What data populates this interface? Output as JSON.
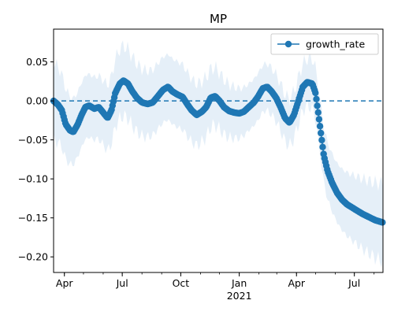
{
  "chart_data": {
    "type": "line",
    "title": "MP",
    "xlabel": "",
    "ylabel": "",
    "x_start": "2020-03-15",
    "x_end": "2021-08-15",
    "ylim": [
      -0.22,
      0.092
    ],
    "yticks": [
      0.05,
      0.0,
      -0.05,
      -0.1,
      -0.15,
      -0.2
    ],
    "ytick_labels": [
      "0.05",
      "0.00",
      "−0.05",
      "−0.10",
      "−0.15",
      "−0.20"
    ],
    "xticks": [
      {
        "date": "2020-04-01",
        "label": "Apr"
      },
      {
        "date": "2020-07-01",
        "label": "Jul"
      },
      {
        "date": "2020-10-01",
        "label": "Oct"
      },
      {
        "date": "2021-01-01",
        "label": "Jan"
      },
      {
        "date": "2021-04-01",
        "label": "Apr"
      },
      {
        "date": "2021-07-01",
        "label": "Jul"
      }
    ],
    "year_label": "2021",
    "reference_line": 0.0,
    "legend": {
      "placement": "top-right"
    },
    "colors": {
      "series": "#1f77b4",
      "band": "#dce9f5"
    },
    "series": [
      {
        "name": "growth_rate",
        "points": [
          [
            "2020-03-15",
            0.0
          ],
          [
            "2020-03-22",
            -0.005
          ],
          [
            "2020-03-28",
            -0.012
          ],
          [
            "2020-04-03",
            -0.03
          ],
          [
            "2020-04-10",
            -0.038
          ],
          [
            "2020-04-15",
            -0.04
          ],
          [
            "2020-04-22",
            -0.03
          ],
          [
            "2020-04-28",
            -0.018
          ],
          [
            "2020-05-04",
            -0.008
          ],
          [
            "2020-05-10",
            -0.006
          ],
          [
            "2020-05-18",
            -0.01
          ],
          [
            "2020-05-25",
            -0.008
          ],
          [
            "2020-06-01",
            -0.015
          ],
          [
            "2020-06-08",
            -0.022
          ],
          [
            "2020-06-14",
            -0.012
          ],
          [
            "2020-06-20",
            0.01
          ],
          [
            "2020-06-27",
            0.022
          ],
          [
            "2020-07-03",
            0.026
          ],
          [
            "2020-07-10",
            0.022
          ],
          [
            "2020-07-17",
            0.012
          ],
          [
            "2020-07-24",
            0.004
          ],
          [
            "2020-08-01",
            -0.002
          ],
          [
            "2020-08-10",
            -0.004
          ],
          [
            "2020-08-18",
            -0.002
          ],
          [
            "2020-08-26",
            0.006
          ],
          [
            "2020-09-03",
            0.014
          ],
          [
            "2020-09-11",
            0.018
          ],
          [
            "2020-09-18",
            0.012
          ],
          [
            "2020-09-26",
            0.008
          ],
          [
            "2020-10-04",
            0.005
          ],
          [
            "2020-10-11",
            -0.004
          ],
          [
            "2020-10-18",
            -0.012
          ],
          [
            "2020-10-26",
            -0.018
          ],
          [
            "2020-11-03",
            -0.014
          ],
          [
            "2020-11-10",
            -0.008
          ],
          [
            "2020-11-17",
            0.004
          ],
          [
            "2020-11-24",
            0.006
          ],
          [
            "2020-12-01",
            0.0
          ],
          [
            "2020-12-08",
            -0.008
          ],
          [
            "2020-12-16",
            -0.013
          ],
          [
            "2020-12-24",
            -0.015
          ],
          [
            "2021-01-01",
            -0.016
          ],
          [
            "2021-01-08",
            -0.014
          ],
          [
            "2021-01-16",
            -0.008
          ],
          [
            "2021-01-24",
            -0.002
          ],
          [
            "2021-01-31",
            0.006
          ],
          [
            "2021-02-07",
            0.016
          ],
          [
            "2021-02-14",
            0.018
          ],
          [
            "2021-02-21",
            0.012
          ],
          [
            "2021-02-28",
            0.004
          ],
          [
            "2021-03-07",
            -0.008
          ],
          [
            "2021-03-14",
            -0.022
          ],
          [
            "2021-03-21",
            -0.028
          ],
          [
            "2021-03-28",
            -0.018
          ],
          [
            "2021-04-04",
            0.0
          ],
          [
            "2021-04-11",
            0.018
          ],
          [
            "2021-04-18",
            0.024
          ],
          [
            "2021-04-26",
            0.022
          ],
          [
            "2021-05-01",
            0.01
          ],
          [
            "2021-05-06",
            -0.02
          ],
          [
            "2021-05-10",
            -0.045
          ],
          [
            "2021-05-14",
            -0.07
          ],
          [
            "2021-05-20",
            -0.09
          ],
          [
            "2021-05-27",
            -0.105
          ],
          [
            "2021-06-04",
            -0.118
          ],
          [
            "2021-06-12",
            -0.127
          ],
          [
            "2021-06-20",
            -0.133
          ],
          [
            "2021-06-28",
            -0.137
          ],
          [
            "2021-07-06",
            -0.141
          ],
          [
            "2021-07-14",
            -0.145
          ],
          [
            "2021-07-24",
            -0.149
          ],
          [
            "2021-08-03",
            -0.153
          ],
          [
            "2021-08-15",
            -0.156
          ]
        ],
        "band_half_width": [
          [
            "2020-03-15",
            0.05
          ],
          [
            "2020-04-15",
            0.042
          ],
          [
            "2020-05-20",
            0.04
          ],
          [
            "2020-07-03",
            0.045
          ],
          [
            "2020-08-15",
            0.042
          ],
          [
            "2020-10-01",
            0.042
          ],
          [
            "2020-12-01",
            0.036
          ],
          [
            "2021-01-15",
            0.03
          ],
          [
            "2021-02-14",
            0.03
          ],
          [
            "2021-03-21",
            0.03
          ],
          [
            "2021-04-18",
            0.03
          ],
          [
            "2021-05-10",
            0.035
          ],
          [
            "2021-06-04",
            0.038
          ],
          [
            "2021-07-14",
            0.045
          ],
          [
            "2021-08-15",
            0.05
          ]
        ]
      }
    ]
  }
}
